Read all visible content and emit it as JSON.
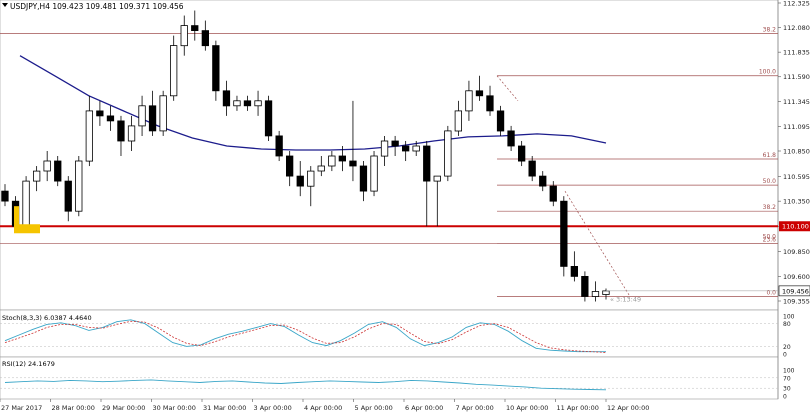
{
  "symbol_header": "USDJPY,H4  109.423 109.481 109.371 109.456",
  "colors": {
    "up_candle": "#ffffff",
    "down_candle": "#000000",
    "moving_average": "#1c1c8c",
    "fib_line": "#a05050",
    "support_line": "#cc0000",
    "support_label_bg": "#cc0000",
    "current_price_bg": "#ffffff",
    "highlight_box": "#f5c400",
    "stoch_main": "#3aa6c8",
    "stoch_signal": "#cc3333",
    "rsi_line": "#3aa6c8",
    "grid_text": "#222222"
  },
  "price_axis": {
    "labels": [
      "112.325",
      "112.080",
      "111.835",
      "111.590",
      "111.345",
      "111.095",
      "110.850",
      "110.595",
      "110.350",
      "110.100",
      "109.850",
      "109.600",
      "109.355"
    ],
    "support_label": "110.100",
    "current_price_label": "109.456"
  },
  "fib_levels": [
    {
      "label": "100.0",
      "price": 111.6
    },
    {
      "label": "61.8",
      "price": 110.77
    },
    {
      "label": "50.0",
      "price": 110.51
    },
    {
      "label": "38.2",
      "price": 110.25
    },
    {
      "label": "23.6",
      "price": 109.93
    },
    {
      "label": "0.0",
      "price": 109.4
    }
  ],
  "left_fib": {
    "label": "38.2",
    "price": 112.02
  },
  "extra_fib_label": {
    "label": "50.0",
    "price": 109.99
  },
  "countdown_label": "« 3:13:49",
  "stoch": {
    "title": "Stoch(8,3,3) 6.0387 4.4640",
    "axis_labels": [
      "100",
      "80",
      "20",
      "0"
    ]
  },
  "rsi": {
    "title": "RSI(12) 24.1679",
    "axis_labels": [
      "100",
      "70",
      "30",
      "0"
    ]
  },
  "time_axis": [
    "27 Mar 2017",
    "28 Mar 00:00",
    "29 Mar 00:00",
    "30 Mar 00:00",
    "31 Mar 00:00",
    "3 Apr 00:00",
    "4 Apr 00:00",
    "5 Apr 00:00",
    "6 Apr 00:00",
    "7 Apr 00:00",
    "10 Apr 00:00",
    "11 Apr 00:00",
    "12 Apr 00:00"
  ],
  "chart_data": {
    "type": "candlestick",
    "symbol": "USDJPY",
    "timeframe": "H4",
    "ylim": [
      109.25,
      112.45
    ],
    "candles": [
      [
        110.45,
        110.52,
        110.3,
        110.35
      ],
      [
        110.35,
        110.4,
        110.05,
        110.1
      ],
      [
        110.1,
        110.6,
        110.05,
        110.55
      ],
      [
        110.55,
        110.7,
        110.45,
        110.65
      ],
      [
        110.65,
        110.85,
        110.55,
        110.75
      ],
      [
        110.75,
        110.8,
        110.5,
        110.55
      ],
      [
        110.55,
        110.6,
        110.15,
        110.25
      ],
      [
        110.25,
        110.8,
        110.2,
        110.75
      ],
      [
        110.75,
        111.4,
        110.7,
        111.25
      ],
      [
        111.25,
        111.35,
        111.1,
        111.2
      ],
      [
        111.2,
        111.3,
        111.05,
        111.15
      ],
      [
        111.15,
        111.2,
        110.8,
        110.95
      ],
      [
        110.95,
        111.2,
        110.85,
        111.1
      ],
      [
        111.1,
        111.4,
        111.0,
        111.3
      ],
      [
        111.3,
        111.45,
        111.0,
        111.05
      ],
      [
        111.05,
        111.45,
        111.0,
        111.4
      ],
      [
        111.4,
        112.0,
        111.35,
        111.9
      ],
      [
        111.9,
        112.2,
        111.8,
        112.1
      ],
      [
        112.1,
        112.25,
        111.95,
        112.05
      ],
      [
        112.05,
        112.15,
        111.85,
        111.9
      ],
      [
        111.9,
        111.95,
        111.35,
        111.45
      ],
      [
        111.45,
        111.55,
        111.2,
        111.3
      ],
      [
        111.3,
        111.4,
        111.25,
        111.35
      ],
      [
        111.35,
        111.4,
        111.25,
        111.3
      ],
      [
        111.3,
        111.45,
        111.2,
        111.35
      ],
      [
        111.35,
        111.4,
        110.95,
        111.0
      ],
      [
        111.0,
        111.05,
        110.75,
        110.8
      ],
      [
        110.8,
        110.85,
        110.5,
        110.6
      ],
      [
        110.6,
        110.75,
        110.4,
        110.5
      ],
      [
        110.5,
        110.7,
        110.3,
        110.65
      ],
      [
        110.65,
        110.8,
        110.6,
        110.7
      ],
      [
        110.7,
        110.85,
        110.65,
        110.8
      ],
      [
        110.8,
        110.9,
        110.65,
        110.75
      ],
      [
        110.75,
        111.35,
        110.55,
        110.7
      ],
      [
        110.7,
        110.75,
        110.35,
        110.45
      ],
      [
        110.45,
        110.85,
        110.4,
        110.8
      ],
      [
        110.8,
        111.0,
        110.7,
        110.95
      ],
      [
        110.95,
        111.0,
        110.8,
        110.9
      ],
      [
        110.9,
        110.95,
        110.75,
        110.85
      ],
      [
        110.85,
        110.95,
        110.8,
        110.9
      ],
      [
        110.9,
        110.95,
        110.1,
        110.55
      ],
      [
        110.55,
        110.6,
        110.1,
        110.6
      ],
      [
        110.6,
        111.1,
        110.55,
        111.05
      ],
      [
        111.05,
        111.35,
        111.0,
        111.25
      ],
      [
        111.25,
        111.55,
        111.15,
        111.45
      ],
      [
        111.45,
        111.6,
        111.35,
        111.4
      ],
      [
        111.4,
        111.5,
        111.2,
        111.25
      ],
      [
        111.25,
        111.3,
        111.0,
        111.05
      ],
      [
        111.05,
        111.1,
        110.85,
        110.9
      ],
      [
        110.9,
        110.95,
        110.7,
        110.75
      ],
      [
        110.75,
        110.8,
        110.55,
        110.6
      ],
      [
        110.6,
        110.65,
        110.45,
        110.5
      ],
      [
        110.5,
        110.55,
        110.3,
        110.35
      ],
      [
        110.35,
        110.4,
        109.6,
        109.7
      ],
      [
        109.7,
        109.85,
        109.55,
        109.6
      ],
      [
        109.6,
        109.65,
        109.35,
        109.4
      ],
      [
        109.4,
        109.55,
        109.35,
        109.45
      ],
      [
        109.42,
        109.48,
        109.37,
        109.456
      ]
    ],
    "moving_average": [
      111.8,
      111.6,
      111.4,
      111.25,
      111.1,
      110.98,
      110.9,
      110.87,
      110.86,
      110.86,
      110.87,
      110.9,
      110.95,
      110.99,
      111.0,
      111.02,
      111.0,
      110.93
    ],
    "stochastic": {
      "main": [
        35,
        50,
        65,
        78,
        82,
        75,
        62,
        70,
        85,
        90,
        80,
        55,
        30,
        20,
        24,
        40,
        52,
        60,
        70,
        80,
        72,
        50,
        30,
        22,
        35,
        55,
        78,
        85,
        70,
        40,
        22,
        30,
        45,
        70,
        82,
        78,
        60,
        35,
        15,
        10,
        8,
        6,
        6,
        6
      ],
      "signal": [
        30,
        42,
        55,
        70,
        78,
        78,
        70,
        68,
        78,
        86,
        84,
        68,
        45,
        28,
        22,
        32,
        45,
        55,
        65,
        75,
        76,
        62,
        42,
        28,
        30,
        45,
        66,
        80,
        78,
        55,
        33,
        27,
        38,
        58,
        75,
        80,
        70,
        50,
        30,
        16,
        11,
        8,
        6,
        4
      ]
    },
    "rsi": [
      52,
      55,
      58,
      56,
      60,
      58,
      55,
      57,
      60,
      62,
      58,
      55,
      52,
      56,
      58,
      54,
      50,
      48,
      52,
      55,
      58,
      56,
      54,
      52,
      55,
      60,
      58,
      54,
      50,
      45,
      42,
      38,
      35,
      30,
      28,
      26,
      25,
      24
    ]
  }
}
